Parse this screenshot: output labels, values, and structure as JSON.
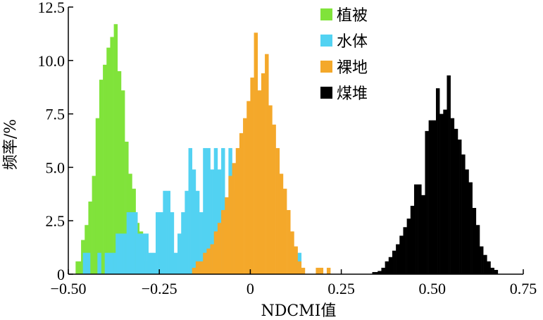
{
  "chart_data": {
    "type": "bar",
    "title": "",
    "xlabel": "NDCMI值",
    "ylabel": "频率/%",
    "xlim": [
      -0.5,
      0.75
    ],
    "ylim": [
      0,
      12.5
    ],
    "xticks": [
      -0.5,
      -0.25,
      0,
      0.25,
      0.5,
      0.75
    ],
    "xtick_labels": [
      "−0.50",
      "−0.25",
      "0",
      "0.25",
      "0.50",
      "0.75"
    ],
    "yticks": [
      0,
      2.5,
      5.0,
      7.5,
      10.0,
      12.5
    ],
    "ytick_labels": [
      "0",
      "2.5",
      "5.0",
      "7.5",
      "10.0",
      "12.5"
    ],
    "bin_width": 0.005,
    "grid": false,
    "legend_position": "top-right",
    "series": [
      {
        "name": "植被",
        "color": "#80e33a",
        "x0": -0.48,
        "values": [
          0.6,
          0.6,
          0.6,
          1.6,
          1.6,
          2.3,
          2.3,
          3.4,
          3.4,
          4.6,
          4.6,
          7.3,
          7.3,
          9.1,
          9.1,
          9.8,
          9.8,
          10.6,
          10.6,
          11.1,
          11.1,
          11.7,
          11.7,
          9.5,
          9.5,
          8.6,
          8.6,
          6.2,
          6.2,
          4.7,
          4.7,
          4.0,
          4.0,
          2.4,
          2.4,
          2.0,
          2.0,
          0.6,
          0.6
        ]
      },
      {
        "name": "水体",
        "color": "#52d2f2",
        "x0": -0.47,
        "values": [
          0.0,
          0.0,
          1.0,
          1.0,
          1.0,
          1.0,
          0.0,
          0.0,
          0.0,
          0.0,
          1.0,
          1.0,
          0.0,
          0.0,
          1.0,
          1.0,
          1.0,
          1.0,
          1.0,
          1.0,
          1.9,
          1.9,
          1.9,
          1.9,
          1.9,
          1.9,
          2.9,
          2.9,
          2.9,
          2.9,
          2.9,
          2.9,
          1.9,
          1.9,
          1.9,
          1.9,
          1.9,
          1.9,
          1.0,
          1.0,
          1.0,
          1.0,
          2.9,
          2.9,
          2.9,
          2.9,
          3.9,
          3.9,
          3.9,
          3.9,
          2.9,
          2.9,
          1.0,
          1.0,
          1.9,
          1.9,
          2.9,
          2.9,
          3.9,
          3.9,
          5.9,
          5.9,
          4.9,
          4.9,
          3.9,
          3.9,
          2.9,
          2.9,
          5.9,
          5.9,
          5.9,
          5.9,
          4.9,
          4.9,
          5.9,
          5.9,
          4.9,
          4.9,
          5.9,
          5.9,
          1.0,
          1.0,
          5.9,
          5.9,
          3.9,
          3.9,
          1.0,
          1.0,
          0.0,
          0.0,
          0.0,
          0.0,
          0.0,
          0.0,
          0.0,
          0.0,
          0.0,
          0.0,
          0.0,
          0.0,
          0.0,
          0.0,
          0.0,
          0.0,
          0.0,
          0.0,
          0.0,
          0.0,
          0.0,
          0.0,
          0.0,
          0.0,
          0.0,
          0.0,
          0.0,
          0.0,
          0.0,
          0.0,
          0.0,
          0.0,
          1.0,
          1.0
        ]
      },
      {
        "name": "裸地",
        "color": "#f4a82a",
        "x0": -0.16,
        "values": [
          0.3,
          0.3,
          0.6,
          0.6,
          0.6,
          0.6,
          1.0,
          1.0,
          1.2,
          1.2,
          1.4,
          1.4,
          2.0,
          2.0,
          2.4,
          2.4,
          3.0,
          3.0,
          3.6,
          3.6,
          4.6,
          4.6,
          5.2,
          5.2,
          5.9,
          5.9,
          6.6,
          6.6,
          7.3,
          7.3,
          8.1,
          8.1,
          9.2,
          9.2,
          11.3,
          11.3,
          8.6,
          8.6,
          9.4,
          9.4,
          10.3,
          10.3,
          7.9,
          7.9,
          7.0,
          7.0,
          5.9,
          5.9,
          4.7,
          4.7,
          4.0,
          4.0,
          3.0,
          3.0,
          2.0,
          2.0,
          1.3,
          1.3,
          0.6,
          0.6,
          0.3,
          0.3,
          0.0,
          0.0,
          0.0,
          0.0,
          0.0,
          0.0,
          0.3,
          0.3,
          0.3,
          0.3,
          0.0,
          0.0,
          0.3,
          0.3
        ]
      },
      {
        "name": "煤堆",
        "color": "#000000",
        "x0": 0.335,
        "values": [
          0.1,
          0.1,
          0.1,
          0.15,
          0.15,
          0.3,
          0.3,
          0.6,
          0.6,
          0.8,
          0.8,
          1.1,
          1.1,
          1.4,
          1.4,
          1.8,
          1.8,
          2.2,
          2.2,
          2.6,
          2.6,
          3.2,
          3.2,
          4.2,
          4.2,
          4.2,
          4.2,
          3.7,
          3.7,
          6.7,
          6.7,
          7.2,
          7.2,
          7.2,
          7.2,
          8.7,
          8.7,
          7.5,
          7.5,
          7.7,
          7.7,
          9.3,
          9.3,
          7.3,
          7.3,
          6.8,
          6.8,
          6.3,
          6.3,
          5.6,
          5.6,
          4.9,
          4.9,
          4.3,
          4.3,
          3.1,
          3.1,
          2.3,
          2.3,
          1.3,
          1.3,
          0.9,
          0.9,
          0.6,
          0.6,
          0.3,
          0.3,
          0.2,
          0.2
        ]
      }
    ]
  }
}
